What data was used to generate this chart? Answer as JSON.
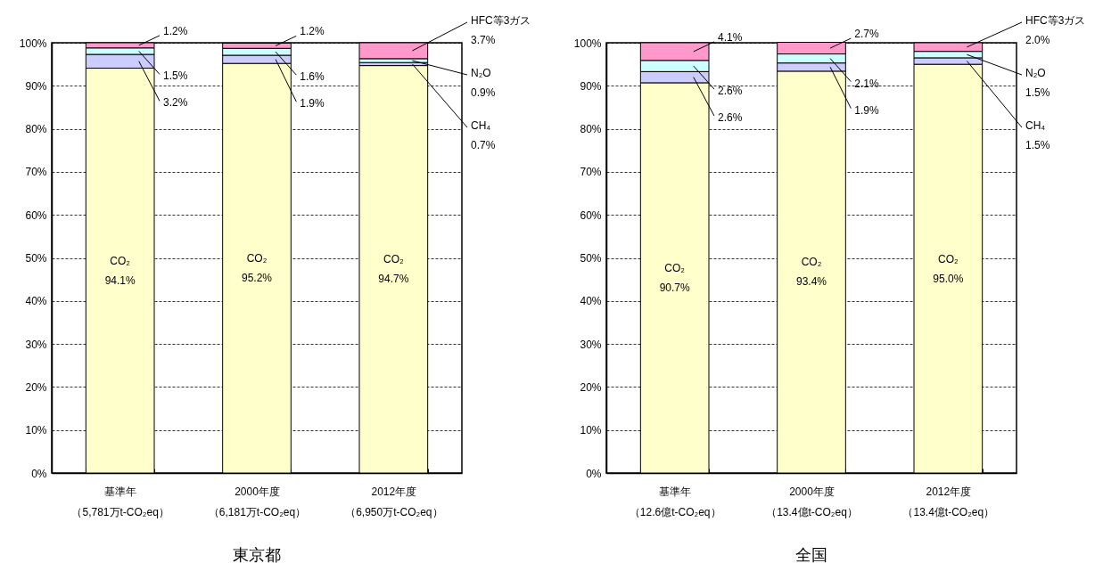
{
  "chart_data": [
    {
      "type": "bar",
      "title": "東京都",
      "stacked": true,
      "grid": "y",
      "categories": [
        "基準年（5,781万t-CO₂eq）",
        "2000年度（6,181万t-CO₂eq）",
        "2012年度（6,950万t-CO₂eq）"
      ],
      "series": [
        {
          "name": "CO₂",
          "color": "#ffffcc",
          "values": [
            94.1,
            95.2,
            94.7
          ],
          "value_labels": [
            "94.1%",
            "95.2%",
            "94.7%"
          ]
        },
        {
          "name": "CH₄",
          "color": "#ccccff",
          "values": [
            3.2,
            1.9,
            0.7
          ],
          "value_labels": [
            "3.2%",
            "1.9%",
            "0.7%"
          ]
        },
        {
          "name": "N₂O",
          "color": "#ccffff",
          "values": [
            1.5,
            1.6,
            0.9
          ],
          "value_labels": [
            "1.5%",
            "1.6%",
            "0.9%"
          ]
        },
        {
          "name": "HFC等3ガス",
          "color": "#ff99cc",
          "values": [
            1.2,
            1.2,
            3.7
          ],
          "value_labels": [
            "1.2%",
            "1.2%",
            "3.7%"
          ]
        }
      ],
      "ylim": [
        0,
        100
      ],
      "yticks": [
        {
          "value": 0,
          "label": "0%"
        },
        {
          "value": 10,
          "label": "10%"
        },
        {
          "value": 20,
          "label": "20%"
        },
        {
          "value": 30,
          "label": "30%"
        },
        {
          "value": 40,
          "label": "40%"
        },
        {
          "value": 50,
          "label": "50%"
        },
        {
          "value": 60,
          "label": "60%"
        },
        {
          "value": 70,
          "label": "70%"
        },
        {
          "value": 80,
          "label": "80%"
        },
        {
          "value": 90,
          "label": "90%"
        },
        {
          "value": 100,
          "label": "100%"
        }
      ]
    },
    {
      "type": "bar",
      "title": "全国",
      "stacked": true,
      "grid": "y",
      "categories": [
        "基準年（12.6億t-CO₂eq）",
        "2000年度（13.4億t-CO₂eq）",
        "2012年度（13.4億t-CO₂eq）"
      ],
      "series": [
        {
          "name": "CO₂",
          "color": "#ffffcc",
          "values": [
            90.7,
            93.4,
            95.0
          ],
          "value_labels": [
            "90.7%",
            "93.4%",
            "95.0%"
          ]
        },
        {
          "name": "CH₄",
          "color": "#ccccff",
          "values": [
            2.6,
            1.9,
            1.5
          ],
          "value_labels": [
            "2.6%",
            "1.9%",
            "1.5%"
          ]
        },
        {
          "name": "N₂O",
          "color": "#ccffff",
          "values": [
            2.6,
            2.1,
            1.5
          ],
          "value_labels": [
            "2.6%",
            "2.1%",
            "1.5%"
          ]
        },
        {
          "name": "HFC等3ガス",
          "color": "#ff99cc",
          "values": [
            4.1,
            2.7,
            2.0
          ],
          "value_labels": [
            "4.1%",
            "2.7%",
            "2.0%"
          ]
        }
      ],
      "ylim": [
        0,
        100
      ],
      "yticks": [
        {
          "value": 0,
          "label": "0%"
        },
        {
          "value": 10,
          "label": "10%"
        },
        {
          "value": 20,
          "label": "20%"
        },
        {
          "value": 30,
          "label": "30%"
        },
        {
          "value": 40,
          "label": "40%"
        },
        {
          "value": 50,
          "label": "50%"
        },
        {
          "value": 60,
          "label": "60%"
        },
        {
          "value": 70,
          "label": "70%"
        },
        {
          "value": 80,
          "label": "80%"
        },
        {
          "value": 90,
          "label": "90%"
        },
        {
          "value": 100,
          "label": "100%"
        }
      ]
    }
  ]
}
